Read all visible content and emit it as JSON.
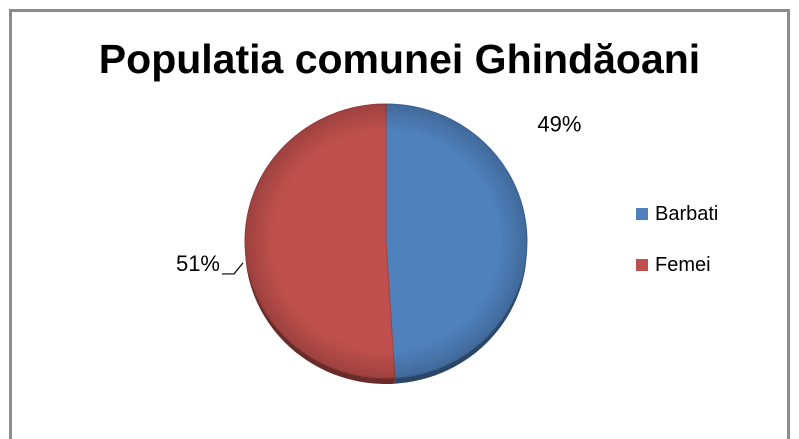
{
  "chart_data": {
    "type": "pie",
    "title": "Populatia comunei Ghindăoani",
    "categories": [
      "Barbati",
      "Femei"
    ],
    "values": [
      49,
      51
    ],
    "labels": [
      "49%",
      "51%"
    ],
    "colors": [
      "#4f81bd",
      "#c0504d"
    ],
    "legend": "right",
    "style": "3d"
  }
}
